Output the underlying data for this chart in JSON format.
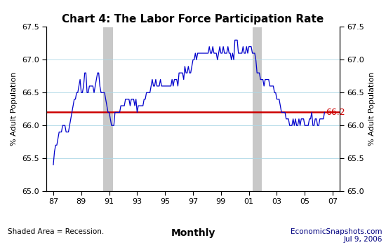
{
  "title": "Chart 4: The Labor Force Participation Rate",
  "ylabel": "% Adult Population",
  "xlabel": "Monthly",
  "footnote_left": "Shaded Area = Recession.",
  "footnote_right": "EconomicSnapshots.com\nJul 9, 2006",
  "ylim": [
    65.0,
    67.5
  ],
  "yticks": [
    65.0,
    65.5,
    66.0,
    66.5,
    67.0,
    67.5
  ],
  "reference_line": 66.2,
  "reference_label": "66.2",
  "line_color": "#0000CC",
  "ref_line_color": "#CC0000",
  "ref_label_color": "#CC0000",
  "recession_color": "#C8C8C8",
  "recession_alpha": 1.0,
  "recessions": [
    {
      "start": 1990.583,
      "end": 1991.25
    },
    {
      "start": 2001.25,
      "end": 2001.917
    }
  ],
  "xtick_labels": [
    "87",
    "89",
    "91",
    "93",
    "95",
    "97",
    "99",
    "01",
    "03",
    "05",
    "07"
  ],
  "xtick_positions": [
    1987,
    1989,
    1991,
    1993,
    1995,
    1997,
    1999,
    2001,
    2003,
    2005,
    2007
  ],
  "xlim": [
    1986.5,
    2007.5
  ],
  "data": {
    "dates": [
      1987.0,
      1987.083,
      1987.167,
      1987.25,
      1987.333,
      1987.417,
      1987.5,
      1987.583,
      1987.667,
      1987.75,
      1987.833,
      1987.917,
      1988.0,
      1988.083,
      1988.167,
      1988.25,
      1988.333,
      1988.417,
      1988.5,
      1988.583,
      1988.667,
      1988.75,
      1988.833,
      1988.917,
      1989.0,
      1989.083,
      1989.167,
      1989.25,
      1989.333,
      1989.417,
      1989.5,
      1989.583,
      1989.667,
      1989.75,
      1989.833,
      1989.917,
      1990.0,
      1990.083,
      1990.167,
      1990.25,
      1990.333,
      1990.417,
      1990.5,
      1990.583,
      1990.667,
      1990.75,
      1990.833,
      1990.917,
      1991.0,
      1991.083,
      1991.167,
      1991.25,
      1991.333,
      1991.417,
      1991.5,
      1991.583,
      1991.667,
      1991.75,
      1991.833,
      1991.917,
      1992.0,
      1992.083,
      1992.167,
      1992.25,
      1992.333,
      1992.417,
      1992.5,
      1992.583,
      1992.667,
      1992.75,
      1992.833,
      1992.917,
      1993.0,
      1993.083,
      1993.167,
      1993.25,
      1993.333,
      1993.417,
      1993.5,
      1993.583,
      1993.667,
      1993.75,
      1993.833,
      1993.917,
      1994.0,
      1994.083,
      1994.167,
      1994.25,
      1994.333,
      1994.417,
      1994.5,
      1994.583,
      1994.667,
      1994.75,
      1994.833,
      1994.917,
      1995.0,
      1995.083,
      1995.167,
      1995.25,
      1995.333,
      1995.417,
      1995.5,
      1995.583,
      1995.667,
      1995.75,
      1995.833,
      1995.917,
      1996.0,
      1996.083,
      1996.167,
      1996.25,
      1996.333,
      1996.417,
      1996.5,
      1996.583,
      1996.667,
      1996.75,
      1996.833,
      1996.917,
      1997.0,
      1997.083,
      1997.167,
      1997.25,
      1997.333,
      1997.417,
      1997.5,
      1997.583,
      1997.667,
      1997.75,
      1997.833,
      1997.917,
      1998.0,
      1998.083,
      1998.167,
      1998.25,
      1998.333,
      1998.417,
      1998.5,
      1998.583,
      1998.667,
      1998.75,
      1998.833,
      1998.917,
      1999.0,
      1999.083,
      1999.167,
      1999.25,
      1999.333,
      1999.417,
      1999.5,
      1999.583,
      1999.667,
      1999.75,
      1999.833,
      1999.917,
      2000.0,
      2000.083,
      2000.167,
      2000.25,
      2000.333,
      2000.417,
      2000.5,
      2000.583,
      2000.667,
      2000.75,
      2000.833,
      2000.917,
      2001.0,
      2001.083,
      2001.167,
      2001.25,
      2001.333,
      2001.417,
      2001.5,
      2001.583,
      2001.667,
      2001.75,
      2001.833,
      2001.917,
      2002.0,
      2002.083,
      2002.167,
      2002.25,
      2002.333,
      2002.417,
      2002.5,
      2002.583,
      2002.667,
      2002.75,
      2002.833,
      2002.917,
      2003.0,
      2003.083,
      2003.167,
      2003.25,
      2003.333,
      2003.417,
      2003.5,
      2003.583,
      2003.667,
      2003.75,
      2003.833,
      2003.917,
      2004.0,
      2004.083,
      2004.167,
      2004.25,
      2004.333,
      2004.417,
      2004.5,
      2004.583,
      2004.667,
      2004.75,
      2004.833,
      2004.917,
      2005.0,
      2005.083,
      2005.167,
      2005.25,
      2005.333,
      2005.417,
      2005.5,
      2005.583,
      2005.667,
      2005.75,
      2005.833,
      2005.917,
      2006.0,
      2006.083,
      2006.167,
      2006.25,
      2006.333,
      2006.417
    ],
    "values": [
      65.4,
      65.6,
      65.7,
      65.7,
      65.8,
      65.9,
      65.9,
      65.9,
      66.0,
      66.0,
      66.0,
      65.9,
      65.9,
      65.9,
      66.0,
      66.1,
      66.2,
      66.3,
      66.4,
      66.4,
      66.5,
      66.5,
      66.6,
      66.7,
      66.5,
      66.5,
      66.6,
      66.8,
      66.8,
      66.5,
      66.5,
      66.6,
      66.6,
      66.6,
      66.6,
      66.5,
      66.6,
      66.7,
      66.8,
      66.8,
      66.6,
      66.5,
      66.5,
      66.5,
      66.5,
      66.4,
      66.3,
      66.2,
      66.2,
      66.1,
      66.0,
      66.0,
      66.0,
      66.2,
      66.2,
      66.2,
      66.2,
      66.2,
      66.3,
      66.3,
      66.3,
      66.3,
      66.4,
      66.4,
      66.4,
      66.4,
      66.3,
      66.4,
      66.4,
      66.4,
      66.3,
      66.4,
      66.2,
      66.3,
      66.3,
      66.3,
      66.3,
      66.3,
      66.4,
      66.4,
      66.5,
      66.5,
      66.5,
      66.5,
      66.6,
      66.7,
      66.6,
      66.6,
      66.7,
      66.6,
      66.6,
      66.6,
      66.7,
      66.6,
      66.6,
      66.6,
      66.6,
      66.6,
      66.6,
      66.6,
      66.6,
      66.6,
      66.7,
      66.6,
      66.7,
      66.7,
      66.7,
      66.6,
      66.8,
      66.8,
      66.8,
      66.8,
      66.7,
      66.9,
      66.8,
      66.8,
      66.9,
      66.8,
      66.8,
      66.9,
      67.0,
      67.0,
      67.1,
      67.0,
      67.1,
      67.1,
      67.1,
      67.1,
      67.1,
      67.1,
      67.1,
      67.1,
      67.1,
      67.1,
      67.2,
      67.1,
      67.1,
      67.2,
      67.1,
      67.1,
      67.1,
      67.0,
      67.1,
      67.2,
      67.1,
      67.1,
      67.2,
      67.1,
      67.1,
      67.1,
      67.2,
      67.1,
      67.1,
      67.0,
      67.1,
      67.0,
      67.3,
      67.3,
      67.3,
      67.1,
      67.1,
      67.1,
      67.1,
      67.2,
      67.1,
      67.1,
      67.2,
      67.1,
      67.2,
      67.2,
      67.2,
      67.1,
      67.1,
      67.1,
      67.0,
      66.8,
      66.8,
      66.8,
      66.7,
      66.7,
      66.7,
      66.6,
      66.7,
      66.7,
      66.7,
      66.7,
      66.6,
      66.6,
      66.6,
      66.6,
      66.5,
      66.5,
      66.4,
      66.4,
      66.4,
      66.3,
      66.2,
      66.2,
      66.2,
      66.2,
      66.1,
      66.1,
      66.1,
      66.0,
      66.0,
      66.0,
      66.1,
      66.0,
      66.1,
      66.0,
      66.0,
      66.1,
      66.0,
      66.1,
      66.1,
      66.1,
      66.0,
      66.0,
      66.0,
      66.0,
      66.1,
      66.1,
      66.2,
      66.0,
      66.0,
      66.1,
      66.1,
      66.0,
      66.0,
      66.1,
      66.1,
      66.1,
      66.1,
      66.2
    ]
  }
}
